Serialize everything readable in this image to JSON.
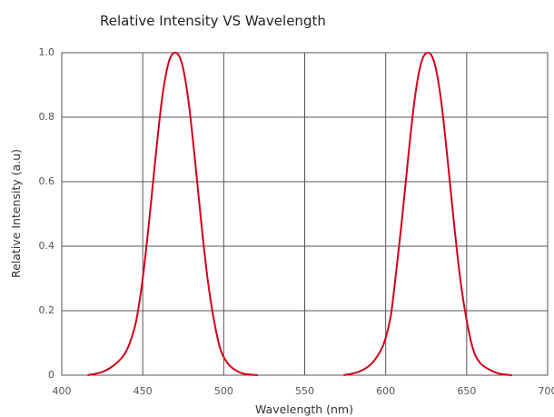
{
  "chart_data": {
    "type": "line",
    "title": "Relative Intensity VS Wavelength",
    "xlabel": "Wavelength (nm)",
    "ylabel": "Relative Intensity (a.u)",
    "xlim": [
      400,
      700
    ],
    "ylim": [
      0,
      1.0
    ],
    "x_ticks": [
      400,
      450,
      500,
      550,
      600,
      650,
      700
    ],
    "x_tick_labels": [
      "400",
      "450",
      "500",
      "550",
      "600",
      "650",
      "700"
    ],
    "y_ticks": [
      0,
      0.2,
      0.4,
      0.6,
      0.8,
      1.0
    ],
    "y_tick_labels": [
      "0",
      "0.2",
      "0.4",
      "0.6",
      "0.8",
      "1.0"
    ],
    "grid": true,
    "series_color": "#d0021b",
    "series": [
      {
        "x": [
          416,
          425,
          432,
          438,
          442,
          446,
          450,
          454,
          458,
          462,
          466,
          470,
          474,
          478,
          482,
          486,
          490,
          494,
          498,
          502,
          506,
          512,
          521
        ],
        "y": [
          0.0,
          0.01,
          0.03,
          0.06,
          0.1,
          0.17,
          0.3,
          0.48,
          0.68,
          0.86,
          0.97,
          1.0,
          0.97,
          0.86,
          0.68,
          0.48,
          0.3,
          0.17,
          0.08,
          0.04,
          0.02,
          0.005,
          0.0
        ]
      },
      {
        "x": [
          574,
          583,
          590,
          595,
          599,
          603,
          606,
          610,
          614,
          618,
          622,
          626,
          630,
          634,
          638,
          642,
          646,
          650,
          654,
          658,
          663,
          670,
          678
        ],
        "y": [
          0.0,
          0.01,
          0.03,
          0.06,
          0.1,
          0.18,
          0.3,
          0.48,
          0.68,
          0.86,
          0.97,
          1.0,
          0.97,
          0.86,
          0.68,
          0.48,
          0.3,
          0.17,
          0.08,
          0.04,
          0.02,
          0.005,
          0.0
        ]
      }
    ]
  }
}
